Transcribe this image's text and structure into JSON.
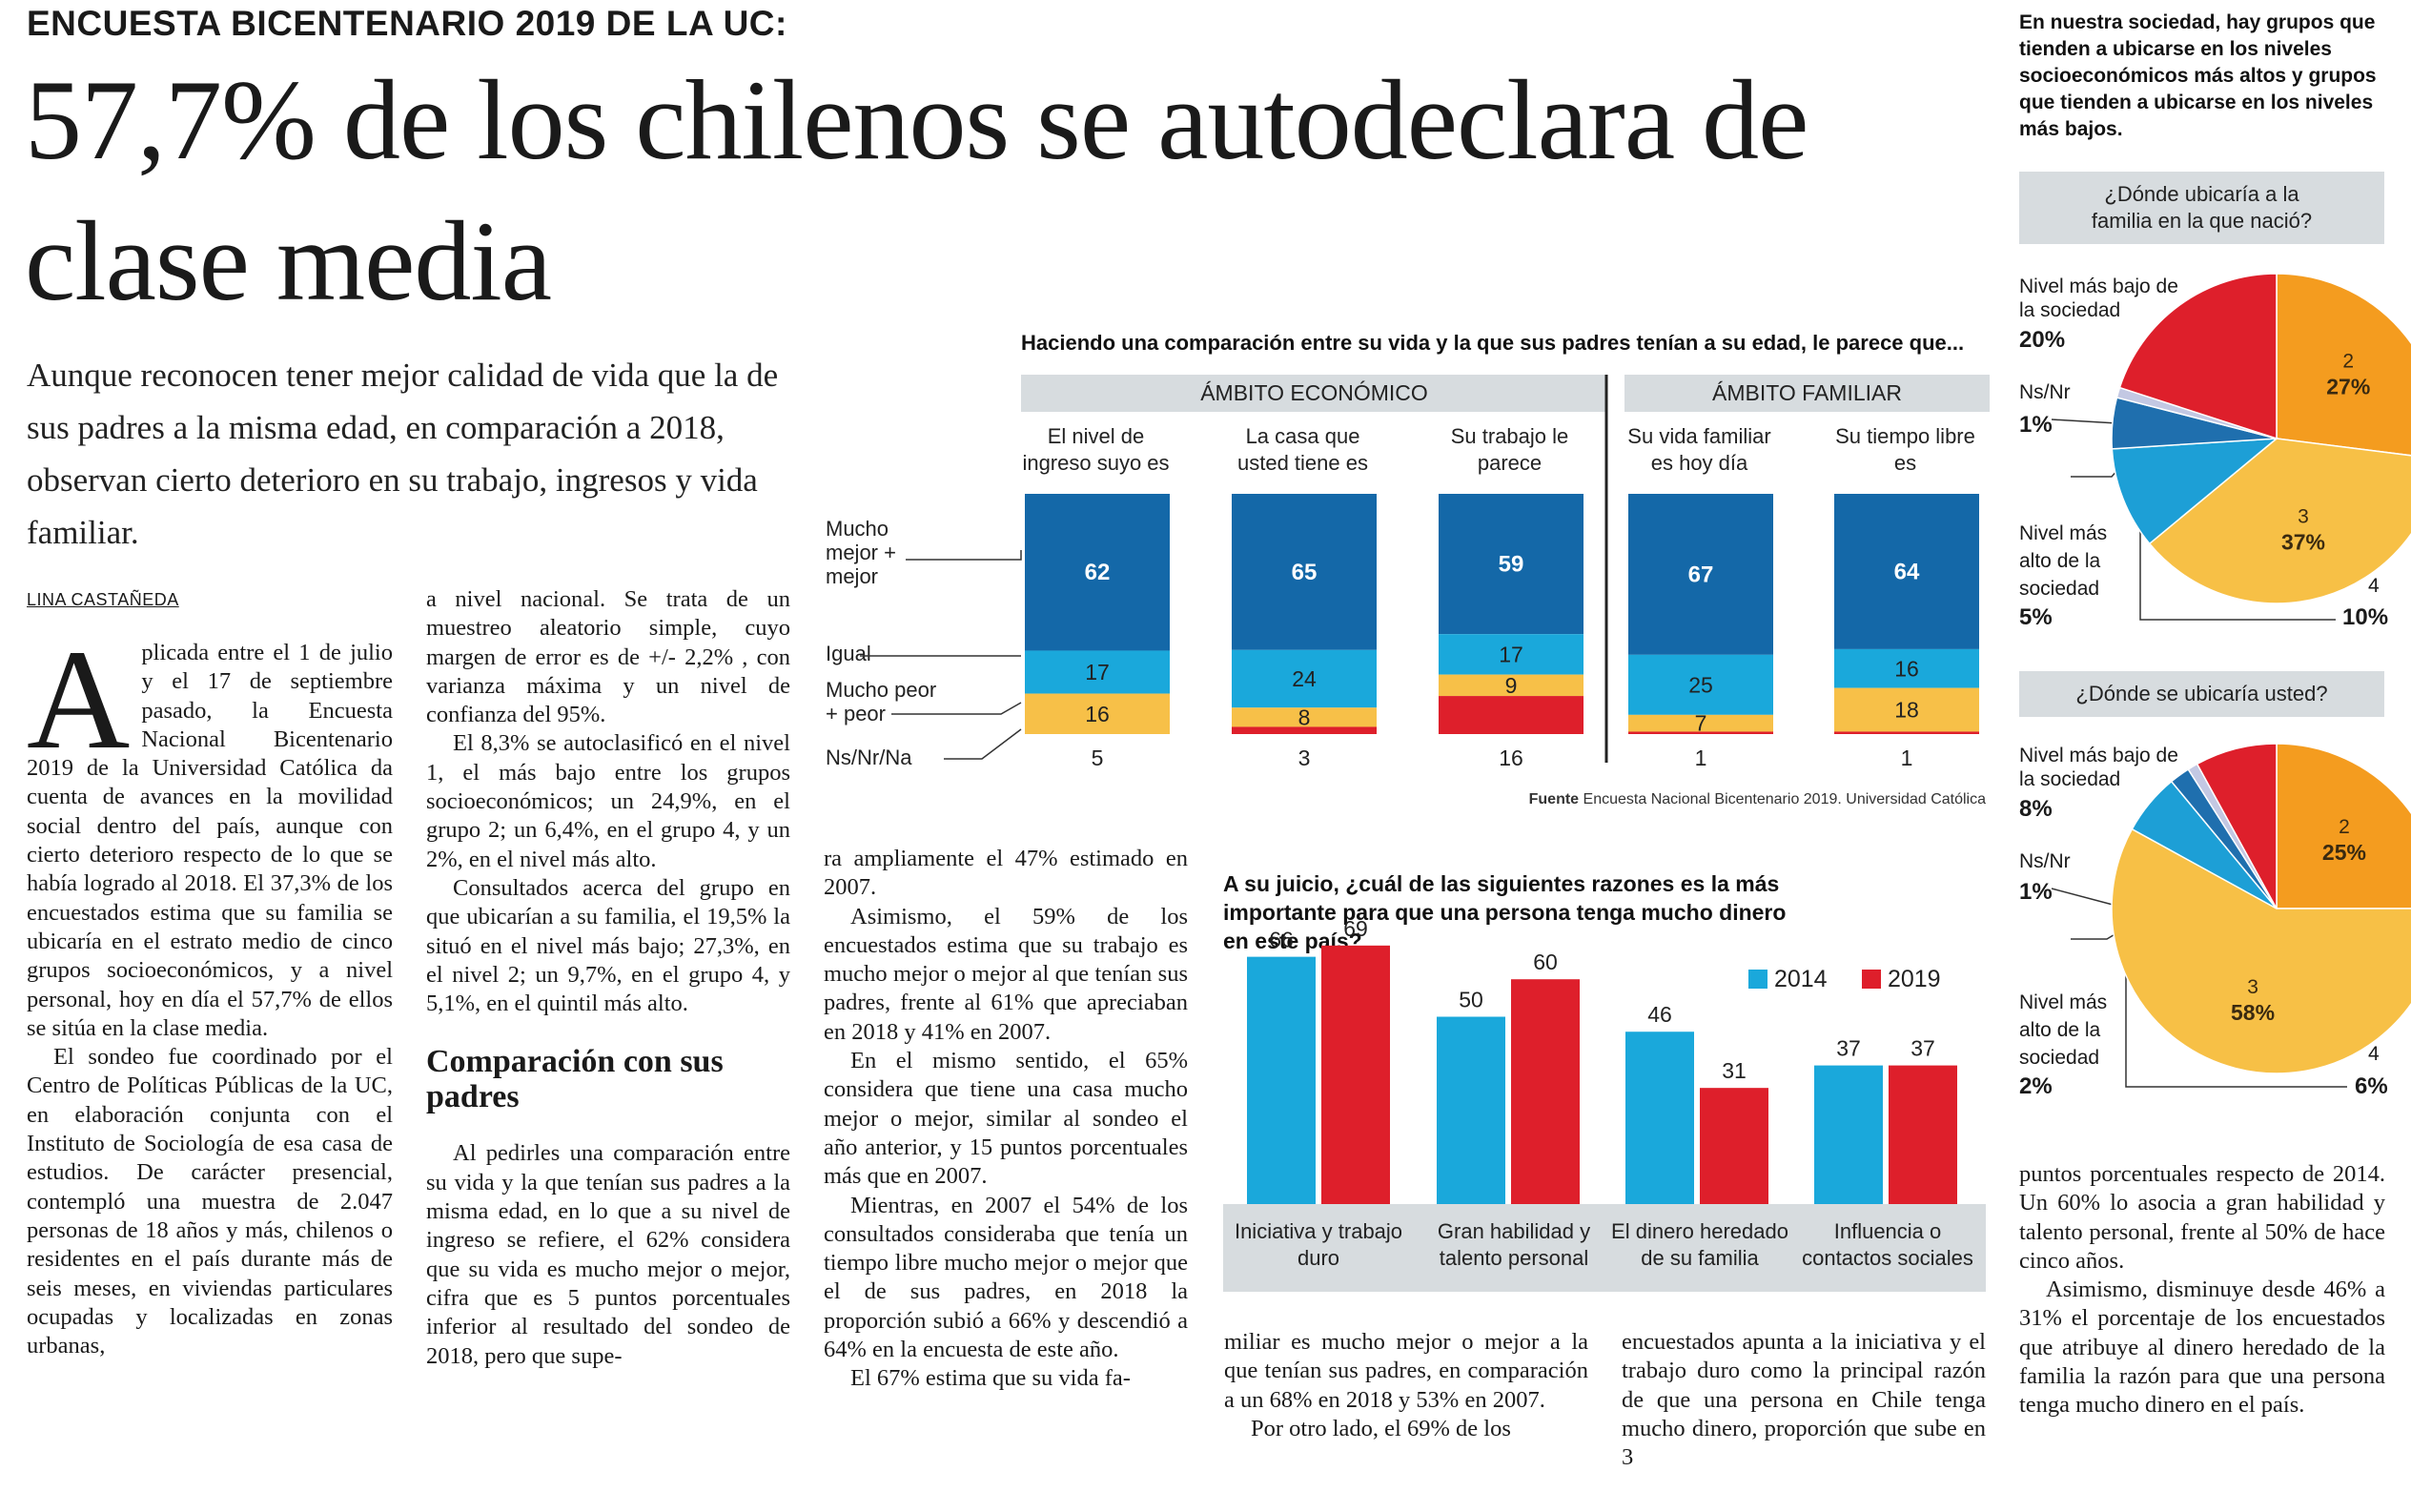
{
  "article": {
    "kicker": "ENCUESTA BICENTENARIO 2019 DE LA UC:",
    "headline": "57,7% de los chilenos se autodeclara de clase media",
    "deck": "Aunque reconocen tener mejor calidad de vida que la de sus padres a la misma edad, en comparación a 2018, observan cierto deterioro en su trabajo, ingresos y vida familiar.",
    "byline": "LINA CASTAÑEDA",
    "dropcap": "A",
    "c1p1": "plicada entre el 1 de julio y el 17 de septiembre pasado, la Encuesta Nacional Bicentenario 2019 de la Universidad Católica da cuenta de avances en la movilidad social dentro del país, aunque con cierto deterioro respecto de lo que se había logrado al 2018. El 37,3% de los encuestados estima que su familia se ubicaría en el estrato medio de cinco grupos socioeconómicos, y a nivel personal, hoy en día el 57,7% de ellos se sitúa en la clase media.",
    "c1p2": "El sondeo fue coordinado por el Centro de Políticas Públicas de la UC, en elaboración conjunta con el Instituto de Sociología de esa casa de estudios. De carácter presencial, contempló una muestra de 2.047 personas de 18 años y más, chilenos o residentes en el país durante más de seis meses, en viviendas particulares ocupadas y localizadas en zonas urbanas,",
    "c2p1": "a nivel nacional. Se trata de un muestreo aleatorio simple, cuyo margen de error es de +/- 2,2% , con varianza máxima y un nivel de confianza del 95%.",
    "c2p2": "El 8,3% se autoclasificó en el nivel 1, el más bajo entre los grupos socioeconómicos; un 24,9%, en el grupo 2; un 6,4%, en el grupo 4, y un 2%, en el nivel más alto.",
    "c2p3": "Consultados acerca del grupo en que ubicarían a su familia, el 19,5% la situó en el nivel más bajo; 27,3%, en el nivel 2; un 9,7%, en el grupo 4, y 5,1%, en el quintil más alto.",
    "subhead": "Comparación con sus padres",
    "c2p4": "Al pedirles una comparación entre su vida y la que tenían sus padres a la misma edad, en lo que a su nivel de ingreso se refiere, el 62% considera que su vida es mucho mejor o mejor, cifra que es 5 puntos porcentuales inferior al resultado del sondeo de 2018, pero que supe-",
    "c3p1": "ra ampliamente el 47% estimado en 2007.",
    "c3p2": "Asimismo, el 59% de los encuestados estima que su trabajo es mucho mejor o mejor al que tenían sus padres, frente al 61% que apreciaban en 2018 y 41% en 2007.",
    "c3p3": "En el mismo sentido, el 65% considera que tiene una casa mucho mejor o mejor, similar al sondeo el año anterior, y 15 puntos porcentuales más que en 2007.",
    "c3p4": "Mientras, en 2007 el 54% de los consultados consideraba que tenía un tiempo libre mucho mejor o mejor que el de sus padres, en 2018 la proporción subió a 66% y descendió a 64% en la encuesta de este año.",
    "c3p5": "El 67% estima que su vida fa-",
    "c4p1": "miliar es mucho mejor o mejor a la que tenían sus padres, en comparación a un 68% en 2018 y 53% en 2007.",
    "c4p2": "Por otro lado, el 69% de los",
    "c5p1": "encuestados apunta a la iniciativa y el trabajo duro como la principal razón de que una persona en Chile tenga mucho dinero, proporción que sube en 3",
    "c6p1": "puntos porcentuales respecto de 2014. Un 60% lo asocia a gran habilidad y talento personal, frente al 50% de hace cinco años.",
    "c6p2": "Asimismo, disminuye desde 46% a 31% el porcentaje de los encuestados que atribuye al dinero heredado de la familia la razón para que una persona tenga mucho dinero en el país."
  },
  "colors": {
    "dark_blue": "#1468a8",
    "light_blue": "#1aa8db",
    "yellow": "#f7c048",
    "red": "#de1f2b",
    "orange": "#f49c1f",
    "pie_yellow": "#f7c046",
    "pie_dark_blue": "#1f6fae",
    "pie_light_blue": "#1d9fd6",
    "pie_lavender": "#c3c8e3",
    "band_gray": "#d7dcdf"
  },
  "chart_data": [
    {
      "type": "bar",
      "stacked": true,
      "title": "Haciendo una comparación entre su vida y la que sus padres tenían a su edad, le parece que...",
      "groups": [
        "ÁMBITO ECONÓMICO",
        "ÁMBITO FAMILIAR"
      ],
      "categories": [
        "El nivel de ingreso suyo es",
        "La casa que usted tiene es",
        "Su trabajo le parece",
        "Su vida familiar es hoy día",
        "Su tiempo libre es"
      ],
      "series": [
        {
          "name": "Mucho mejor + mejor",
          "values": [
            62,
            65,
            59,
            67,
            64
          ]
        },
        {
          "name": "Igual",
          "values": [
            17,
            24,
            17,
            25,
            16
          ]
        },
        {
          "name": "Mucho peor + peor",
          "values": [
            16,
            8,
            9,
            7,
            18
          ]
        },
        {
          "name": "Ns/Nr/Na",
          "values": [
            5,
            3,
            16,
            1,
            1
          ]
        }
      ],
      "source_label": "Fuente",
      "source": "Encuesta Nacional Bicentenario 2019. Universidad Católica"
    },
    {
      "type": "bar",
      "title": "A su juicio, ¿cuál de las siguientes razones es la más importante para que una persona tenga mucho dinero en este país?",
      "categories": [
        "Iniciativa y trabajo duro",
        "Gran habilidad y talento personal",
        "El dinero heredado de su familia",
        "Influencia o contactos sociales"
      ],
      "series": [
        {
          "name": "2014",
          "values": [
            66,
            50,
            46,
            37
          ]
        },
        {
          "name": "2019",
          "values": [
            69,
            60,
            31,
            37
          ]
        }
      ],
      "ylim": [
        0,
        80
      ]
    },
    {
      "type": "pie",
      "title": "¿Dónde ubicaría a la familia en la que nació?",
      "labels": [
        "Nivel más bajo de la sociedad",
        "2",
        "3",
        "4",
        "Nivel más alto de la sociedad",
        "Ns/Nr"
      ],
      "values": [
        20,
        27,
        37,
        10,
        5,
        1
      ]
    },
    {
      "type": "pie",
      "title": "¿Dónde se ubicaría usted?",
      "labels": [
        "Nivel más bajo de la sociedad",
        "2",
        "3",
        "4",
        "Nivel más alto de la sociedad",
        "Ns/Nr"
      ],
      "values": [
        8,
        25,
        58,
        6,
        2,
        1
      ]
    }
  ],
  "pies_intro": "En nuestra sociedad, hay grupos que tienden a ubicarse en los niveles socioeconómicos más altos y grupos que tienden a ubicarse en los niveles más bajos.",
  "pie_labels": {
    "nivel_bajo": "Nivel más bajo de la sociedad",
    "nivel_alto": "Nivel más alto de la sociedad",
    "nsnr": "Ns/Nr",
    "p1": {
      "bajo": "20%",
      "nsnr": "1%",
      "alto": "5%",
      "four": "10%",
      "two": "27%",
      "three": "37%"
    },
    "p2": {
      "bajo": "8%",
      "nsnr": "1%",
      "alto": "2%",
      "four": "6%",
      "two": "25%",
      "three": "58%"
    }
  }
}
